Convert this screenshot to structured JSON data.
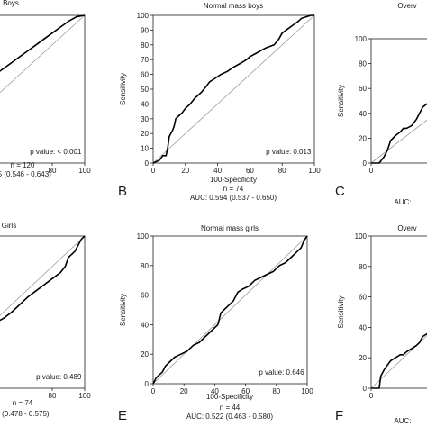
{
  "chart_data": [
    {
      "panel": "A",
      "type": "line",
      "title": "Boys",
      "xlabel": "100-Specificity",
      "ylabel": "Sensitivity",
      "xlim": [
        0,
        100
      ],
      "ylim": [
        0,
        100
      ],
      "xticks": [
        80,
        100
      ],
      "yticks": [],
      "annotation": "p value: < 0.001",
      "caption": [
        "n = 120",
        "95 (0.546 - 0.643)"
      ],
      "series": [
        {
          "x": [
            0,
            2,
            5,
            8,
            12,
            16,
            20,
            25,
            30,
            35,
            40,
            45,
            50,
            55,
            60,
            65,
            70,
            75,
            80,
            85,
            90,
            95,
            100
          ],
          "y": [
            0,
            8,
            14,
            20,
            26,
            30,
            36,
            40,
            45,
            50,
            56,
            60,
            64,
            68,
            72,
            76,
            80,
            84,
            88,
            92,
            96,
            99,
            100
          ]
        }
      ]
    },
    {
      "panel": "B",
      "type": "line",
      "title": "Normal mass boys",
      "xlabel": "100-Specificity",
      "ylabel": "Sensitivity",
      "xlim": [
        0,
        100
      ],
      "ylim": [
        0,
        100
      ],
      "xticks": [
        0,
        20,
        40,
        60,
        80,
        100
      ],
      "yticks": [
        0,
        10,
        20,
        30,
        40,
        50,
        60,
        70,
        80,
        90,
        100
      ],
      "annotation": "p value: 0.013",
      "caption": [
        "100-Specificity",
        "n = 74",
        "AUC: 0.594 (0.537 - 0.650)"
      ],
      "series": [
        {
          "x": [
            0,
            4,
            6,
            8,
            9,
            10,
            12,
            13,
            14,
            16,
            18,
            20,
            23,
            26,
            28,
            30,
            33,
            35,
            38,
            42,
            46,
            50,
            55,
            58,
            60,
            65,
            70,
            75,
            78,
            80,
            85,
            90,
            92,
            95,
            98,
            100
          ],
          "y": [
            0,
            2,
            5,
            5,
            10,
            18,
            22,
            25,
            30,
            32,
            34,
            37,
            40,
            44,
            46,
            48,
            52,
            55,
            57,
            60,
            62,
            65,
            68,
            70,
            72,
            75,
            78,
            80,
            84,
            88,
            92,
            96,
            98,
            99,
            100,
            100
          ]
        }
      ]
    },
    {
      "panel": "C",
      "type": "line",
      "title": "Overv",
      "xlabel": "",
      "ylabel": "Sensitivity",
      "xlim": [
        0,
        100
      ],
      "ylim": [
        0,
        100
      ],
      "xticks": [
        0
      ],
      "yticks": [
        0,
        20,
        40,
        60,
        80,
        100
      ],
      "annotation": "",
      "caption": [
        "AUC:"
      ],
      "series": [
        {
          "x": [
            0,
            5,
            8,
            10,
            12,
            15,
            18,
            20,
            22,
            25,
            28,
            30,
            32,
            35
          ],
          "y": [
            0,
            0,
            5,
            10,
            18,
            22,
            25,
            28,
            28,
            30,
            35,
            40,
            45,
            48
          ]
        }
      ]
    },
    {
      "panel": "D",
      "type": "line",
      "title": "Girls",
      "xlabel": "",
      "ylabel": "Sensitivity",
      "xlim": [
        0,
        100
      ],
      "ylim": [
        0,
        100
      ],
      "xticks": [
        80,
        100
      ],
      "yticks": [],
      "annotation": "p value: 0.489",
      "caption": [
        "n = 74",
        "5 (0.478 - 0.575)"
      ],
      "series": [
        {
          "x": [
            0,
            5,
            10,
            15,
            20,
            25,
            30,
            35,
            40,
            45,
            50,
            55,
            60,
            65,
            70,
            75,
            80,
            85,
            88,
            90,
            92,
            94,
            96,
            98,
            100
          ],
          "y": [
            0,
            6,
            12,
            18,
            22,
            28,
            32,
            36,
            40,
            43,
            46,
            50,
            55,
            60,
            64,
            68,
            72,
            76,
            80,
            86,
            88,
            90,
            94,
            98,
            100
          ]
        }
      ]
    },
    {
      "panel": "E",
      "type": "line",
      "title": "Normal mass girls",
      "xlabel": "100-Specificity",
      "ylabel": "Sensitivity",
      "xlim": [
        0,
        100
      ],
      "ylim": [
        0,
        100
      ],
      "xticks": [
        0,
        20,
        40,
        60,
        80,
        100
      ],
      "yticks": [
        0,
        20,
        40,
        60,
        80,
        100
      ],
      "annotation": "p value: 0.646",
      "caption": [
        "100-Specificity",
        "n = 44",
        "AUC: 0.522 (0.463 - 0.580)"
      ],
      "series": [
        {
          "x": [
            0,
            2,
            4,
            6,
            8,
            10,
            14,
            18,
            22,
            26,
            30,
            34,
            38,
            42,
            44,
            48,
            52,
            55,
            58,
            62,
            66,
            70,
            74,
            78,
            82,
            86,
            90,
            94,
            96,
            98,
            100
          ],
          "y": [
            0,
            4,
            6,
            8,
            12,
            14,
            18,
            20,
            22,
            26,
            28,
            32,
            36,
            40,
            48,
            52,
            56,
            62,
            64,
            66,
            70,
            72,
            74,
            76,
            80,
            82,
            86,
            90,
            92,
            97,
            100
          ]
        }
      ]
    },
    {
      "panel": "F",
      "type": "line",
      "title": "Overv",
      "xlabel": "",
      "ylabel": "Sensitivity",
      "xlim": [
        0,
        100
      ],
      "ylim": [
        0,
        100
      ],
      "xticks": [
        0
      ],
      "yticks": [
        0,
        20,
        40,
        60,
        80,
        100
      ],
      "annotation": "",
      "caption": [
        "AUC:"
      ],
      "series": [
        {
          "x": [
            0,
            5,
            6,
            8,
            10,
            12,
            15,
            18,
            20,
            22,
            25,
            28,
            30,
            32,
            35
          ],
          "y": [
            0,
            0,
            8,
            12,
            15,
            18,
            20,
            22,
            22,
            24,
            26,
            28,
            30,
            34,
            36
          ]
        }
      ]
    }
  ]
}
